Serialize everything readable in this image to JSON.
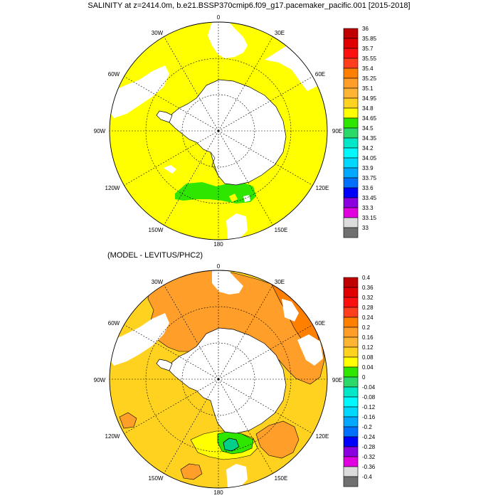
{
  "title": "SALINITY at z=2414.0m, b.e21.BSSP370cmip6.f09_g17.pacemaker_pacific.001 [2015-2018]",
  "subtitle": "(MODEL - LEVITUS/PHC2)",
  "longitude_labels": [
    "0",
    "30E",
    "60E",
    "90E",
    "120E",
    "150E",
    "180",
    "150W",
    "120W",
    "90W",
    "60W",
    "30W"
  ],
  "top_colorbar": {
    "labels": [
      "36",
      "35.85",
      "35.7",
      "35.55",
      "35.4",
      "35.25",
      "35.1",
      "34.95",
      "34.8",
      "34.65",
      "34.5",
      "34.35",
      "34.2",
      "34.05",
      "33.9",
      "33.75",
      "33.6",
      "33.45",
      "33.3",
      "33.15",
      "33"
    ],
    "colors": [
      "#c00000",
      "#e00000",
      "#ff1010",
      "#ff3e1e",
      "#ff7f00",
      "#ff9e28",
      "#ffb533",
      "#ffd21f",
      "#ffff00",
      "#2ee600",
      "#2bd969",
      "#00e8c8",
      "#00f8ff",
      "#00d8ff",
      "#00a8ff",
      "#0070ff",
      "#0000ff",
      "#8a00e0",
      "#e000e0",
      "#dcdcdc",
      "#707070"
    ]
  },
  "bottom_colorbar": {
    "labels": [
      "0.4",
      "0.36",
      "0.32",
      "0.28",
      "0.24",
      "0.2",
      "0.16",
      "0.12",
      "0.08",
      "0.04",
      "0",
      "-0.04",
      "-0.08",
      "-0.12",
      "-0.16",
      "-0.2",
      "-0.24",
      "-0.28",
      "-0.32",
      "-0.36",
      "-0.4"
    ],
    "colors": [
      "#c00000",
      "#e00000",
      "#ff1010",
      "#ff3e1e",
      "#ff7f00",
      "#ff9e28",
      "#ffb533",
      "#ffd21f",
      "#ffff00",
      "#2ee600",
      "#2bd969",
      "#00e8c8",
      "#00f8ff",
      "#00d8ff",
      "#00a8ff",
      "#0070ff",
      "#0000ff",
      "#8a00e0",
      "#e000e0",
      "#dcdcdc",
      "#707070"
    ]
  },
  "map_colors": {
    "top_main": "#ffff00",
    "top_anomaly_band": "#2ee600",
    "bottom_main": "#ff9e28",
    "bottom_secondary": "#ffd21f",
    "bottom_weak": "#ffff00",
    "bottom_negative_patch": "#2ee600",
    "bottom_core": "#00d08a",
    "land": "#ffffff"
  }
}
